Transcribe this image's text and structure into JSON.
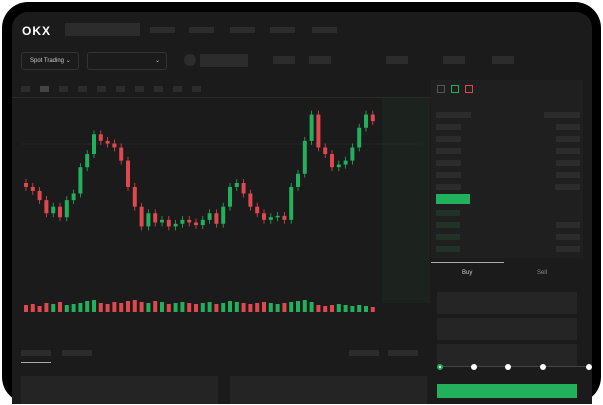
{
  "header": {
    "logo": "OKX"
  },
  "toolbar": {
    "market_select": "Spot Trading",
    "pair_select": ""
  },
  "trade": {
    "tabs": [
      "Buy",
      "Sell"
    ],
    "active_tab": "Buy",
    "leverage_steps": 5
  },
  "colors": {
    "up": "#22b05c",
    "down": "#e0484f",
    "background": "#1b1b1b"
  },
  "chart_data": {
    "type": "candlestick",
    "closes": [
      115,
      112,
      105,
      95,
      100,
      92,
      105,
      110,
      130,
      140,
      155,
      150,
      148,
      145,
      135,
      115,
      100,
      85,
      95,
      88,
      90,
      85,
      87,
      90,
      88,
      86,
      90,
      95,
      87,
      100,
      115,
      118,
      110,
      100,
      95,
      90,
      92,
      93,
      90,
      115,
      125,
      150,
      170,
      145,
      140,
      130,
      132,
      135,
      145,
      160,
      170,
      165
    ],
    "volumes": [
      7,
      8,
      6,
      9,
      8,
      10,
      7,
      8,
      9,
      11,
      12,
      9,
      8,
      10,
      9,
      11,
      12,
      10,
      9,
      11,
      10,
      8,
      9,
      10,
      9,
      8,
      9,
      10,
      8,
      9,
      11,
      10,
      9,
      8,
      9,
      10,
      9,
      8,
      9,
      10,
      11,
      12,
      10,
      7,
      6,
      7,
      8,
      7,
      6,
      7,
      6,
      5
    ]
  }
}
